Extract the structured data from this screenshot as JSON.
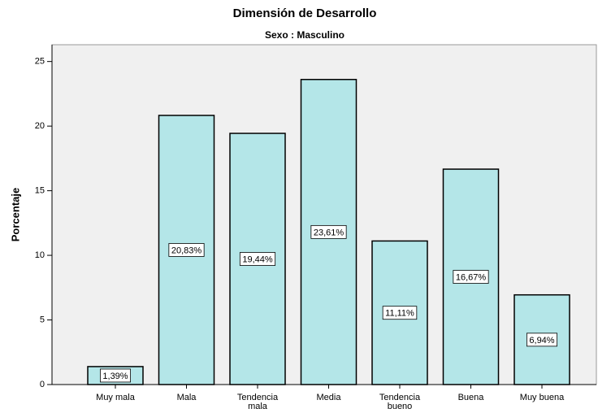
{
  "chart_data": {
    "type": "bar",
    "title": "Dimensión de Desarrollo",
    "subtitle": "Sexo : Masculino",
    "y_label": "Porcentaje",
    "categories": [
      "Muy mala",
      "Mala",
      "Tendencia mala",
      "Media",
      "Tendencia bueno",
      "Buena",
      "Muy buena"
    ],
    "values": [
      1.39,
      20.83,
      19.44,
      23.61,
      11.11,
      16.67,
      6.94
    ],
    "value_labels": [
      "1,39%",
      "20,83%",
      "19,44%",
      "23,61%",
      "11,11%",
      "16,67%",
      "6,94%"
    ],
    "color": "#b4e6e8",
    "ylim": [
      0,
      26.3
    ],
    "yticks": [
      0,
      5,
      10,
      15,
      20,
      25
    ]
  }
}
